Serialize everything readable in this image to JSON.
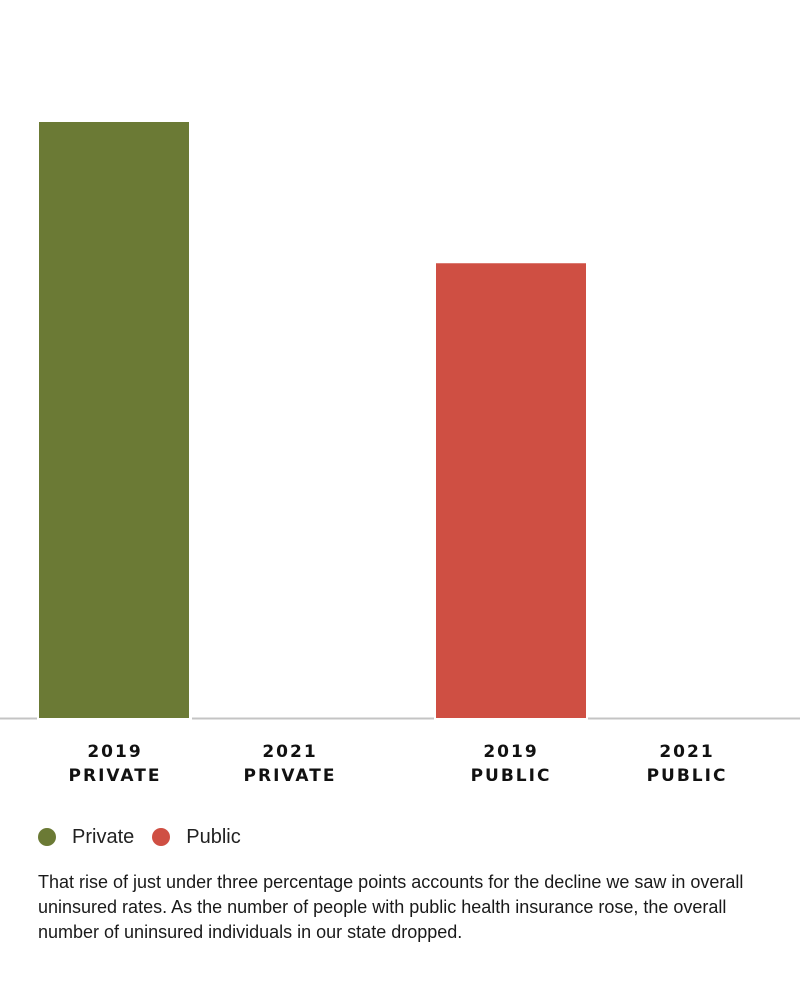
{
  "chart_data": {
    "type": "bar",
    "categories": [
      {
        "year": "2019",
        "group": "PRIVATE"
      },
      {
        "year": "2021",
        "group": "PRIVATE"
      },
      {
        "year": "2019",
        "group": "PUBLIC"
      },
      {
        "year": "2021",
        "group": "PUBLIC"
      }
    ],
    "values": [
      100,
      0,
      76.3,
      0
    ],
    "series": [
      {
        "name": "Private",
        "color": "#6b7a35"
      },
      {
        "name": "Public",
        "color": "#cf4f43"
      }
    ],
    "bar_series": [
      0,
      0,
      1,
      1
    ],
    "ylim": [
      0,
      100
    ],
    "title": "",
    "xlabel": "",
    "ylabel": "",
    "grid": false,
    "legend_position": "bottom-left"
  },
  "legend": [
    {
      "label": "Private",
      "color": "#6b7a35"
    },
    {
      "label": "Public",
      "color": "#cf4f43"
    }
  ],
  "note": "That rise of just under three percentage points accounts for the decline we saw in overall uninsured rates. As the number of people with public health insurance rose, the overall number of uninsured individuals in our state dropped.",
  "colors": {
    "baseline": "#c4c4c4",
    "text": "#111111"
  }
}
